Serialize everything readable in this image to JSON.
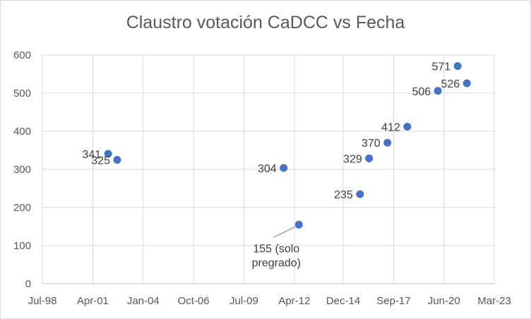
{
  "chart_data": {
    "type": "scatter",
    "title": "Claustro votación CaDCC vs Fecha",
    "xlabel": "",
    "ylabel": "",
    "x_axis_type": "date",
    "xlim": [
      "1998-07-01",
      "2023-03-01"
    ],
    "ylim": [
      0,
      600
    ],
    "y_ticks": [
      0,
      100,
      200,
      300,
      400,
      500,
      600
    ],
    "x_ticks": [
      {
        "date": "1998-07-01",
        "label": "Jul-98"
      },
      {
        "date": "2001-04-01",
        "label": "Apr-01"
      },
      {
        "date": "2004-01-01",
        "label": "Jan-04"
      },
      {
        "date": "2006-10-01",
        "label": "Oct-06"
      },
      {
        "date": "2009-07-01",
        "label": "Jul-09"
      },
      {
        "date": "2012-04-01",
        "label": "Apr-12"
      },
      {
        "date": "2014-12-01",
        "label": "Dec-14"
      },
      {
        "date": "2017-09-01",
        "label": "Sep-17"
      },
      {
        "date": "2020-06-01",
        "label": "Jun-20"
      },
      {
        "date": "2023-03-01",
        "label": "Mar-23"
      }
    ],
    "grid": true,
    "legend": "none",
    "marker_color": "#4472c4",
    "points": [
      {
        "x": "2002-02-01",
        "y": 341,
        "label": "341",
        "label_pos": "left"
      },
      {
        "x": "2002-08-01",
        "y": 325,
        "label": "325",
        "label_pos": "left"
      },
      {
        "x": "2011-09-01",
        "y": 304,
        "label": "304",
        "label_pos": "left"
      },
      {
        "x": "2012-07-01",
        "y": 155,
        "label": "155 (solo\npregrado)",
        "label_pos": "below-left-leader"
      },
      {
        "x": "2015-11-01",
        "y": 235,
        "label": "235",
        "label_pos": "left"
      },
      {
        "x": "2016-05-01",
        "y": 329,
        "label": "329",
        "label_pos": "left"
      },
      {
        "x": "2017-05-01",
        "y": 370,
        "label": "370",
        "label_pos": "left"
      },
      {
        "x": "2018-06-01",
        "y": 412,
        "label": "412",
        "label_pos": "left"
      },
      {
        "x": "2020-02-01",
        "y": 506,
        "label": "506",
        "label_pos": "left"
      },
      {
        "x": "2021-03-01",
        "y": 571,
        "label": "571",
        "label_pos": "left"
      },
      {
        "x": "2021-09-01",
        "y": 526,
        "label": "526",
        "label_pos": "left"
      }
    ]
  }
}
